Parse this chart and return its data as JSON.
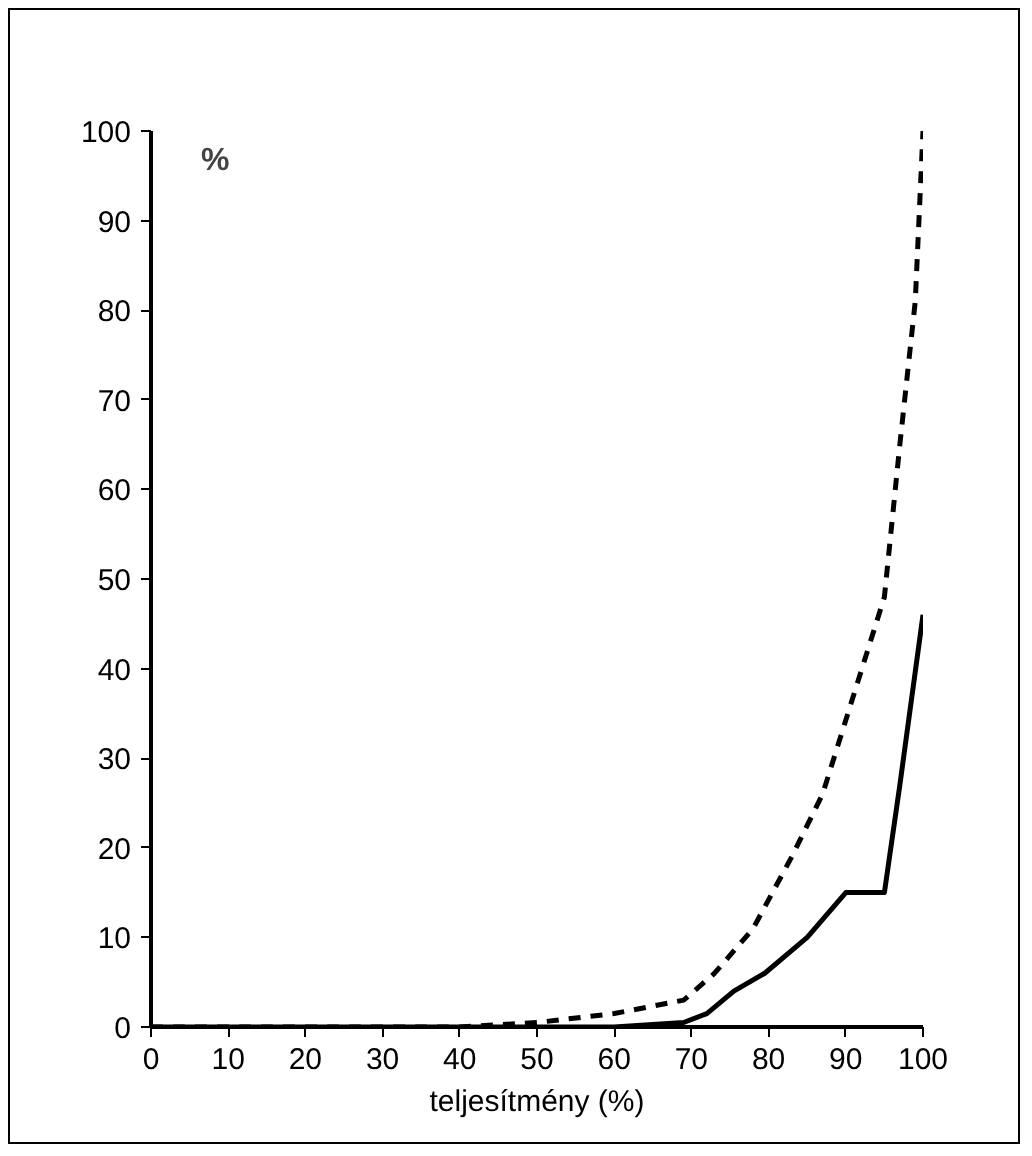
{
  "chart_data": {
    "type": "line",
    "xlabel": "teljesítmény (%)",
    "ylabel": "%",
    "xlim": [
      0,
      100
    ],
    "ylim": [
      0,
      100
    ],
    "xticks": [
      0,
      10,
      20,
      30,
      40,
      50,
      60,
      70,
      80,
      90,
      100
    ],
    "yticks": [
      0,
      10,
      20,
      30,
      40,
      50,
      60,
      70,
      80,
      90,
      100
    ],
    "grid": false,
    "series": [
      {
        "color": "#000000",
        "line_style": "solid",
        "x": [
          0,
          20,
          40,
          60,
          69,
          72,
          75.5,
          79.5,
          85,
          90,
          95,
          97,
          100
        ],
        "values": [
          0,
          0,
          0,
          0,
          0.5,
          1.5,
          4,
          6,
          10,
          15,
          15,
          27,
          46
        ]
      },
      {
        "color": "#000000",
        "line_style": "dashed",
        "x": [
          0,
          40,
          50,
          60,
          69,
          73,
          78,
          83,
          87,
          91,
          95,
          97,
          99,
          100
        ],
        "values": [
          0,
          0,
          0.5,
          1.5,
          3,
          6,
          11,
          19,
          26,
          37,
          48,
          65,
          81,
          100
        ]
      }
    ]
  }
}
